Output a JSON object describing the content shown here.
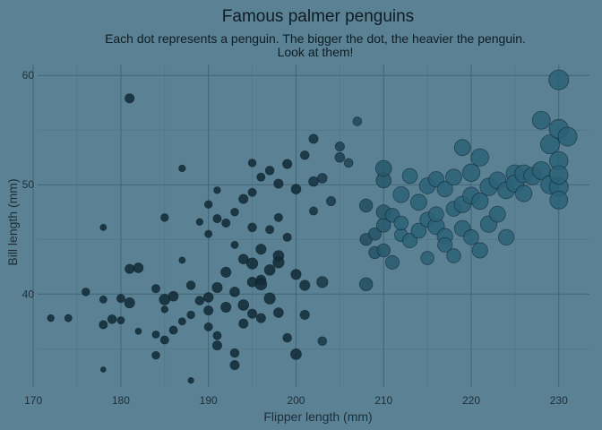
{
  "chart_data": {
    "type": "scatter",
    "title": "Famous palmer penguins",
    "subtitle_lines": [
      "Each dot represents a penguin. The bigger the dot, the heavier the penguin.",
      "Look at them!"
    ],
    "xlabel": "Flipper length (mm)",
    "ylabel": "Bill length (mm)",
    "xlim": [
      170.5,
      233.5
    ],
    "ylim": [
      31.5,
      61
    ],
    "x_ticks": [
      170,
      180,
      190,
      200,
      210,
      220,
      230
    ],
    "y_ticks": [
      40,
      50,
      60
    ],
    "grid": true,
    "legend": "none",
    "size_encodes": "Body mass (g)",
    "colors": {
      "background": "#5b8294",
      "point_dark": "#102a36",
      "point_light": "#2c6177",
      "point_stroke": "#0a1a22"
    },
    "points": [
      [
        172,
        37.8,
        3.3
      ],
      [
        174,
        37.8,
        3.4
      ],
      [
        176,
        40.2,
        3.5
      ],
      [
        178,
        39.5,
        3.4
      ],
      [
        178,
        37.2,
        3.6
      ],
      [
        178,
        33.1,
        3.0
      ],
      [
        178,
        46.1,
        3.2
      ],
      [
        179,
        37.7,
        3.7
      ],
      [
        180,
        39.6,
        3.6
      ],
      [
        180,
        37.6,
        3.4
      ],
      [
        181,
        42.3,
        3.8
      ],
      [
        181,
        39.2,
        4.0
      ],
      [
        181,
        57.9,
        3.8
      ],
      [
        182,
        42.4,
        3.9
      ],
      [
        182,
        36.6,
        3.2
      ],
      [
        184,
        40.5,
        3.6
      ],
      [
        184,
        36.3,
        3.4
      ],
      [
        184,
        34.4,
        3.5
      ],
      [
        185,
        38.6,
        3.3
      ],
      [
        185,
        39.5,
        4.1
      ],
      [
        185,
        47.0,
        3.5
      ],
      [
        185,
        35.8,
        3.6
      ],
      [
        186,
        39.8,
        3.9
      ],
      [
        186,
        36.7,
        3.6
      ],
      [
        187,
        37.5,
        3.4
      ],
      [
        187,
        43.1,
        3.2
      ],
      [
        187,
        51.5,
        3.3
      ],
      [
        188,
        40.8,
        3.7
      ],
      [
        188,
        38.1,
        3.5
      ],
      [
        188,
        32.1,
        3.1
      ],
      [
        189,
        46.6,
        3.3
      ],
      [
        189,
        39.4,
        3.7
      ],
      [
        190,
        39.7,
        3.9
      ],
      [
        190,
        37.0,
        3.6
      ],
      [
        190,
        38.5,
        3.8
      ],
      [
        190,
        48.2,
        3.5
      ],
      [
        190,
        45.5,
        3.4
      ],
      [
        191,
        40.6,
        4.0
      ],
      [
        191,
        36.2,
        3.6
      ],
      [
        191,
        35.3,
        3.8
      ],
      [
        191,
        46.9,
        3.6
      ],
      [
        191,
        49.5,
        3.3
      ],
      [
        192,
        42.0,
        4.0
      ],
      [
        192,
        38.8,
        4.0
      ],
      [
        192,
        46.5,
        3.6
      ],
      [
        193,
        40.2,
        3.9
      ],
      [
        193,
        34.6,
        3.7
      ],
      [
        193,
        44.5,
        3.4
      ],
      [
        193,
        47.5,
        3.5
      ],
      [
        193,
        33.5,
        3.8
      ],
      [
        194,
        43.2,
        3.9
      ],
      [
        194,
        37.3,
        3.8
      ],
      [
        194,
        39.0,
        4.1
      ],
      [
        194,
        48.7,
        3.8
      ],
      [
        195,
        41.1,
        3.9
      ],
      [
        195,
        38.2,
        3.8
      ],
      [
        195,
        42.8,
        4.2
      ],
      [
        195,
        46.1,
        3.7
      ],
      [
        195,
        49.3,
        3.6
      ],
      [
        195,
        52.0,
        3.5
      ],
      [
        196,
        44.1,
        4.0
      ],
      [
        196,
        37.8,
        3.8
      ],
      [
        196,
        41.3,
        3.9
      ],
      [
        196,
        50.7,
        3.6
      ],
      [
        196,
        40.9,
        4.3
      ],
      [
        197,
        42.2,
        4.1
      ],
      [
        197,
        39.6,
        4.2
      ],
      [
        197,
        51.3,
        3.7
      ],
      [
        197,
        45.9,
        3.6
      ],
      [
        198,
        43.5,
        4.1
      ],
      [
        198,
        42.9,
        4.2
      ],
      [
        198,
        38.3,
        3.9
      ],
      [
        198,
        50.1,
        3.8
      ],
      [
        198,
        47.0,
        3.6
      ],
      [
        199,
        36.0,
        3.7
      ],
      [
        199,
        51.9,
        3.8
      ],
      [
        199,
        45.2,
        3.6
      ],
      [
        200,
        41.8,
        4.0
      ],
      [
        200,
        34.5,
        4.1
      ],
      [
        200,
        49.6,
        3.9
      ],
      [
        201,
        40.8,
        4.0
      ],
      [
        201,
        52.7,
        3.7
      ],
      [
        201,
        38.1,
        3.8
      ],
      [
        202,
        54.2,
        3.8
      ],
      [
        202,
        47.6,
        3.6
      ],
      [
        202,
        50.3,
        3.9
      ],
      [
        203,
        41.1,
        4.2
      ],
      [
        203,
        35.7,
        3.7
      ],
      [
        203,
        50.6,
        3.9
      ],
      [
        204,
        48.5,
        3.8
      ],
      [
        205,
        52.5,
        3.9
      ],
      [
        205,
        53.5,
        3.8
      ],
      [
        206,
        52.0,
        3.7
      ],
      [
        207,
        55.8,
        3.7
      ],
      [
        208,
        40.9,
        4.6
      ],
      [
        208,
        45.0,
        4.4
      ],
      [
        208,
        48.1,
        4.6
      ],
      [
        209,
        43.8,
        4.4
      ],
      [
        209,
        45.5,
        4.5
      ],
      [
        210,
        46.3,
        4.8
      ],
      [
        210,
        47.5,
        4.9
      ],
      [
        210,
        44.0,
        4.6
      ],
      [
        210,
        50.4,
        5.0
      ],
      [
        210,
        51.5,
        5.2
      ],
      [
        211,
        42.9,
        4.7
      ],
      [
        211,
        47.2,
        4.8
      ],
      [
        212,
        45.4,
        4.6
      ],
      [
        212,
        49.1,
        5.2
      ],
      [
        212,
        46.5,
        4.8
      ],
      [
        213,
        50.8,
        5.0
      ],
      [
        213,
        44.9,
        4.9
      ],
      [
        214,
        45.8,
        5.0
      ],
      [
        214,
        48.4,
        5.2
      ],
      [
        215,
        43.3,
        4.6
      ],
      [
        215,
        46.8,
        5.0
      ],
      [
        215,
        49.9,
        5.2
      ],
      [
        216,
        46.2,
        5.3
      ],
      [
        216,
        50.5,
        5.1
      ],
      [
        216,
        47.3,
        5.0
      ],
      [
        217,
        45.3,
        5.1
      ],
      [
        217,
        49.6,
        5.1
      ],
      [
        217,
        44.5,
        4.9
      ],
      [
        218,
        47.8,
        5.0
      ],
      [
        218,
        50.7,
        5.2
      ],
      [
        218,
        43.5,
        4.8
      ],
      [
        219,
        46.0,
        5.2
      ],
      [
        219,
        48.2,
        5.3
      ],
      [
        219,
        53.4,
        5.2
      ],
      [
        220,
        49.0,
        5.4
      ],
      [
        220,
        45.2,
        5.0
      ],
      [
        220,
        51.1,
        5.5
      ],
      [
        221,
        44.0,
        5.1
      ],
      [
        221,
        52.5,
        5.5
      ],
      [
        221,
        48.5,
        5.3
      ],
      [
        222,
        49.8,
        5.5
      ],
      [
        222,
        46.4,
        5.3
      ],
      [
        223,
        47.3,
        5.2
      ],
      [
        223,
        50.4,
        5.4
      ],
      [
        224,
        49.5,
        5.4
      ],
      [
        224,
        45.2,
        5.1
      ],
      [
        225,
        51.0,
        5.6
      ],
      [
        225,
        50.1,
        5.5
      ],
      [
        226,
        51.0,
        5.6
      ],
      [
        226,
        49.2,
        5.3
      ],
      [
        227,
        50.8,
        5.5
      ],
      [
        228,
        55.9,
        5.6
      ],
      [
        228,
        51.3,
        5.6
      ],
      [
        229,
        50.0,
        5.7
      ],
      [
        229,
        53.7,
        5.8
      ],
      [
        230,
        59.6,
        6.0
      ],
      [
        230,
        55.1,
        5.9
      ],
      [
        230,
        52.2,
        5.7
      ],
      [
        230,
        49.8,
        5.8
      ],
      [
        230,
        48.6,
        5.6
      ],
      [
        230,
        50.9,
        5.7
      ],
      [
        231,
        54.4,
        5.8
      ]
    ]
  }
}
